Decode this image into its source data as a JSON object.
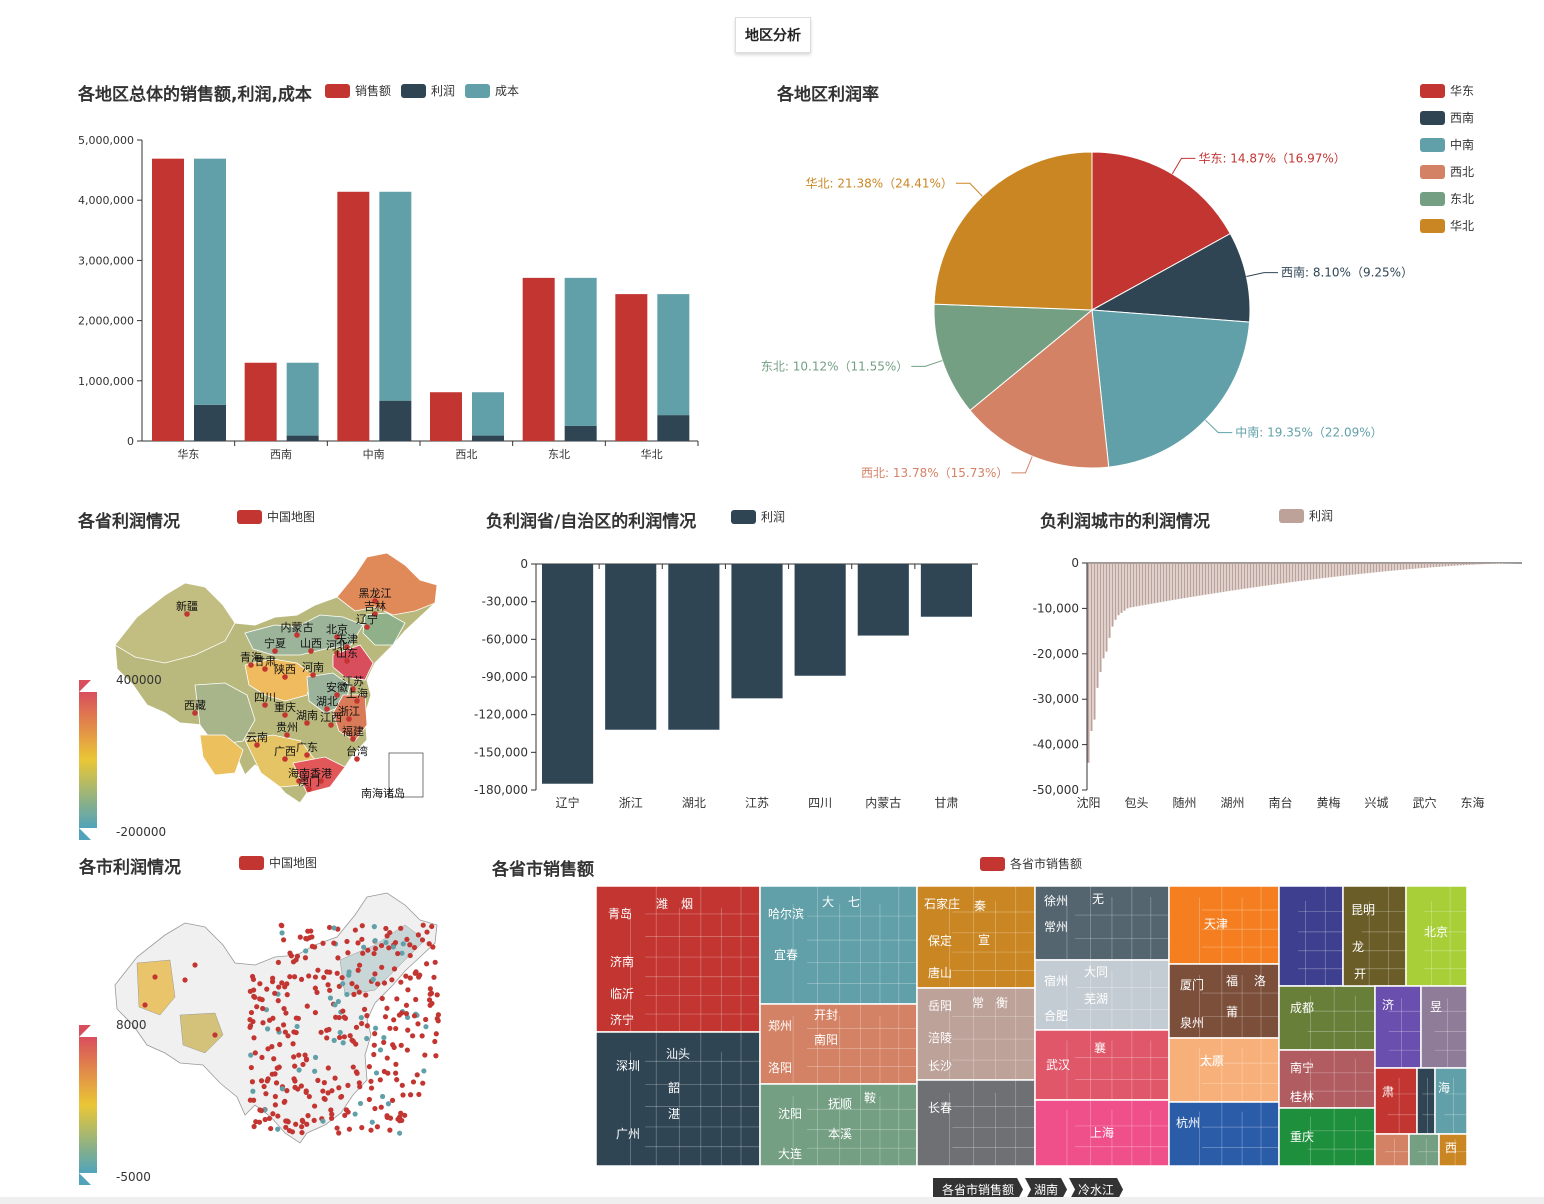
{
  "tab": {
    "label": "地区分析"
  },
  "colors": {
    "red": "#c23531",
    "navy": "#2f4554",
    "teal": "#61a0a8",
    "salmon": "#d48265",
    "green": "#749f83",
    "orange": "#ca8622",
    "mauve": "#bda29a"
  },
  "chart1": {
    "title": "各地区总体的销售额,利润,成本",
    "legend": [
      "销售额",
      "利润",
      "成本"
    ],
    "chart_data": {
      "type": "bar",
      "categories": [
        "华东",
        "西南",
        "中南",
        "西北",
        "东北",
        "华北"
      ],
      "series": [
        {
          "name": "销售额",
          "values": [
            4690000,
            1300000,
            4140000,
            810000,
            2710000,
            2440000
          ]
        },
        {
          "name": "利润",
          "values": [
            600000,
            90000,
            670000,
            90000,
            250000,
            430000
          ]
        },
        {
          "name": "成本",
          "values": [
            4090000,
            1210000,
            3470000,
            720000,
            2460000,
            2010000
          ]
        }
      ],
      "yticks": [
        "0",
        "1,000,000",
        "2,000,000",
        "3,000,000",
        "4,000,000",
        "5,000,000"
      ],
      "ylim": [
        0,
        5000000
      ]
    }
  },
  "chart2": {
    "title": "各地区利润率",
    "chart_data": {
      "type": "pie",
      "slices": [
        {
          "name": "华东",
          "value": 16.97,
          "label": "华东: 14.87%（16.97%）"
        },
        {
          "name": "西南",
          "value": 9.25,
          "label": "西南: 8.10%（9.25%）"
        },
        {
          "name": "中南",
          "value": 22.09,
          "label": "中南: 19.35%（22.09%）"
        },
        {
          "name": "西北",
          "value": 15.73,
          "label": "西北: 13.78%（15.73%）"
        },
        {
          "name": "东北",
          "value": 11.55,
          "label": "东北: 10.12%（11.55%）"
        },
        {
          "name": "华北",
          "value": 24.41,
          "label": "华北: 21.38%（24.41%）"
        }
      ]
    }
  },
  "map1": {
    "title": "各省利润情况",
    "legend": "中国地图",
    "range_max": "400000",
    "range_min": "-200000",
    "labels": [
      "新疆",
      "黑龙江",
      "吉林",
      "辽宁",
      "内蒙古",
      "北京",
      "天津",
      "宁夏",
      "山西",
      "河北",
      "山东",
      "青海",
      "甘肃",
      "陕西",
      "河南",
      "江苏",
      "上海",
      "西藏",
      "安徽",
      "湖北",
      "浙江",
      "四川",
      "重庆",
      "湖南",
      "江西",
      "贵州",
      "福建",
      "云南",
      "广西",
      "广东",
      "台湾",
      "海南",
      "香港",
      "澳门",
      "南海诸岛"
    ]
  },
  "chart3": {
    "title": "负利润省/自治区的利润情况",
    "legend": "利润",
    "chart_data": {
      "type": "bar",
      "categories": [
        "辽宁",
        "浙江",
        "湖北",
        "江苏",
        "四川",
        "内蒙古",
        "甘肃"
      ],
      "values": [
        -175000,
        -132000,
        -132000,
        -107000,
        -89000,
        -57000,
        -42000
      ],
      "yticks": [
        "0",
        "-30,000",
        "-60,000",
        "-90,000",
        "-120,000",
        "-150,000",
        "-180,000"
      ],
      "ylim": [
        -180000,
        0
      ]
    }
  },
  "chart4": {
    "title": "负利润城市的利润情况",
    "legend": "利润",
    "chart_data": {
      "type": "bar",
      "xticks": [
        "沈阳",
        "包头",
        "随州",
        "湖州",
        "南台",
        "黄梅",
        "兴城",
        "武穴",
        "东海"
      ],
      "yticks": [
        "0",
        "-10,000",
        "-20,000",
        "-30,000",
        "-40,000",
        "-50,000"
      ],
      "ylim": [
        -50000,
        0
      ],
      "bar_count": 145,
      "first_values": [
        -44000,
        -37000,
        -34500,
        -27500,
        -24000,
        -21000,
        -19500,
        -16500,
        -14000,
        -12500,
        -11500,
        -11000,
        -10500,
        -10000,
        -9800
      ]
    }
  },
  "map2": {
    "title": "各市利润情况",
    "legend": "中国地图",
    "range_max": "8000",
    "range_min": "-5000"
  },
  "treemap": {
    "title": "各省市销售额",
    "legend": "各省市销售额",
    "breadcrumb": [
      "各省市销售额",
      "湖南",
      "冷水江"
    ],
    "labels": [
      "青岛",
      "潍",
      "烟",
      "济南",
      "临沂",
      "济宁",
      "深圳",
      "汕头",
      "韶",
      "湛",
      "广州",
      "哈尔滨",
      "大",
      "七",
      "宜春",
      "郑州",
      "开封",
      "南阳",
      "洛阳",
      "沈阳",
      "抚顺",
      "鞍",
      "本溪",
      "大连",
      "石家庄",
      "秦",
      "保定",
      "宣",
      "唐山",
      "岳阳",
      "常",
      "衡",
      "涪陵",
      "长沙",
      "长春",
      "徐州",
      "无",
      "常州",
      "宿州",
      "大同",
      "芜湖",
      "合肥",
      "武汉",
      "襄",
      "上海",
      "天津",
      "厦门",
      "福",
      "洛",
      "泉州",
      "莆",
      "太原",
      "杭州",
      "太原",
      "成都",
      "南宁",
      "桂林",
      "重庆",
      "昆明",
      "龙",
      "开",
      "北京",
      "济",
      "昱",
      "肃",
      "海",
      "西"
    ]
  }
}
